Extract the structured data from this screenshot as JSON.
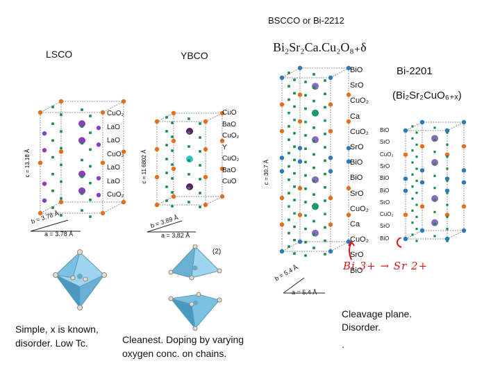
{
  "headers": {
    "lsco": "LSCO",
    "ybco": "YBCO",
    "bscco": "BSCCO or Bi-2212",
    "bscco_formula": "Bi₂Sr₂Ca.Cu₂O₈₊δ",
    "bi2201": "Bi-2201",
    "bi2201_formula": "(Bi₂Sr₂CuO₆₊ₓ)"
  },
  "lsco": {
    "layers": [
      "CuO₂",
      "LaO",
      "LaO",
      "CuO₂",
      "LaO",
      "LaO",
      "CuO₂"
    ],
    "c_axis": "c = 13.18 Å",
    "b_axis": "b = 3.78 Å",
    "a_axis": "a = 3.78 Å",
    "caption": [
      "Simple, x is known,",
      "disorder. Low Tc."
    ]
  },
  "ybco": {
    "layers": [
      "CuO",
      "BaO",
      "CuO₂",
      "Y",
      "CuO₂",
      "BaO",
      "CuO"
    ],
    "c_axis": "c = 11.6802 Å",
    "b_axis": "b = 3.89 Å",
    "a_axis": "a = 3.82 Å",
    "octa_label": "(2)",
    "caption": [
      "Cleanest. Doping by varying",
      "oxygen conc. on chains."
    ]
  },
  "bi2212": {
    "layers": [
      "BiO",
      "SrO",
      "CuO₂",
      "Ca",
      "CuO₂",
      "SrO",
      "BiO",
      "BiO",
      "SrO",
      "CuO₂",
      "Ca",
      "CuO₂",
      "SrO",
      "BiO"
    ],
    "c_axis": "c = 30.7 Å",
    "b_axis": "b = 5.4 Å",
    "a_axis": "a = 5.4 Å",
    "handwritten": "Bi 3+ → Sr 2+",
    "caption": [
      "Cleavage plane.",
      "Disorder.",
      "."
    ]
  },
  "bi2201": {
    "layers": [
      "BiO",
      "SrO",
      "CuO₂",
      "SrO",
      "BiO",
      "BiO",
      "SrO",
      "CuO₂",
      "SrO",
      "BiO"
    ]
  },
  "colors": {
    "cu": "#e07020",
    "o": "#1a8a4a",
    "la": "#8a3fbf",
    "y": "#2ec4c4",
    "ba": "#6a1a6a",
    "bi": "#2a7ac0",
    "sr": "#8a6ac0",
    "ca": "#1a9a6a",
    "octa": "#7ac6e8",
    "handwriting": "#d01818"
  }
}
